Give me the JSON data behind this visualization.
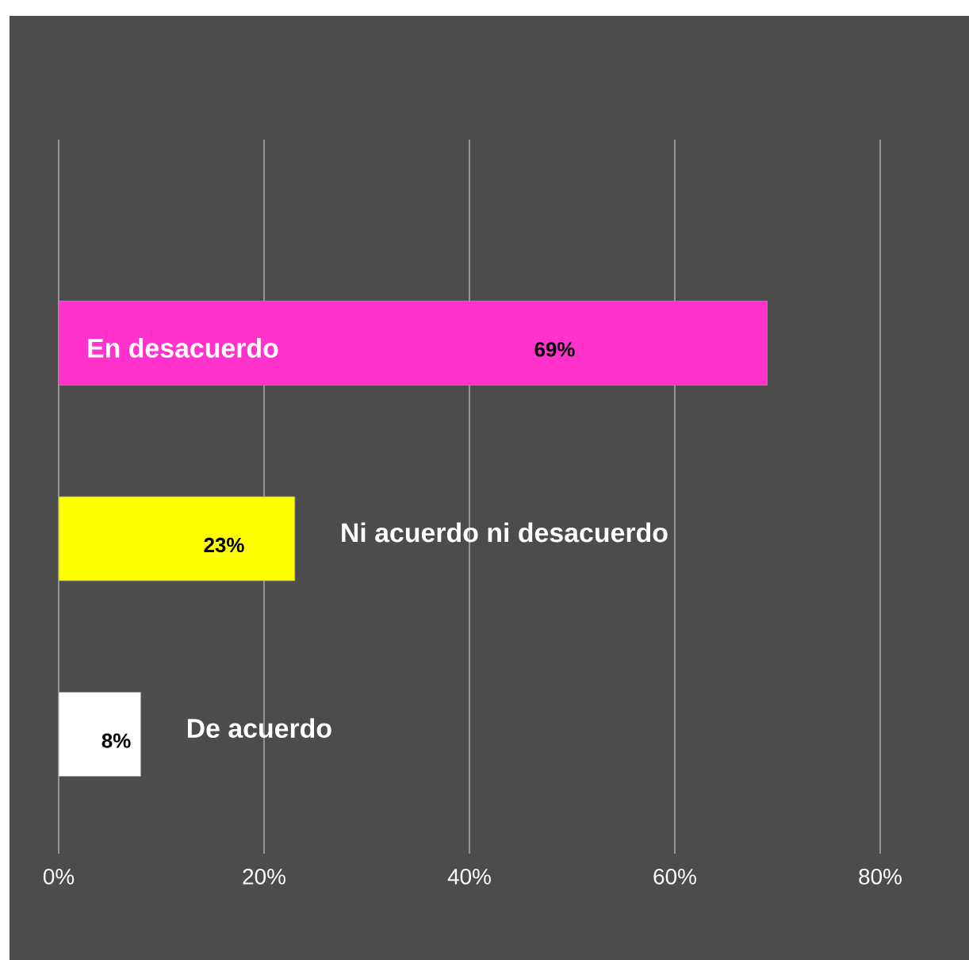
{
  "chart_data": {
    "type": "bar",
    "orientation": "horizontal",
    "categories": [
      "En desacuerdo",
      "Ni acuerdo ni desacuerdo",
      "De acuerdo"
    ],
    "values": [
      69,
      23,
      8
    ],
    "colors": [
      "#ff33cc",
      "#ffff00",
      "#ffffff"
    ],
    "value_labels": [
      "69%",
      "23%",
      "8%"
    ],
    "xlim": [
      0,
      80
    ],
    "xticks": [
      {
        "value": 0,
        "label": "0%"
      },
      {
        "value": 20,
        "label": "20%"
      },
      {
        "value": 40,
        "label": "40%"
      },
      {
        "value": 60,
        "label": "60%"
      },
      {
        "value": 80,
        "label": "80%"
      }
    ],
    "grid": "x",
    "tick_labels": "x"
  }
}
